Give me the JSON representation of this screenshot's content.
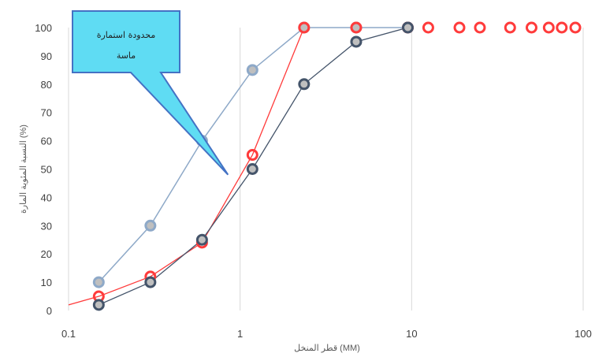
{
  "chart_data": {
    "type": "scatter",
    "title": "",
    "xlabel": "قطر المنخل (MM)",
    "ylabel": "النسبة المئوية المارة (%)",
    "x_scale": "log",
    "xlim": [
      0.1,
      100
    ],
    "ylim": [
      0,
      100
    ],
    "x_ticks": [
      "0.1",
      "1",
      "10",
      "100"
    ],
    "y_ticks": [
      "0",
      "10",
      "20",
      "30",
      "40",
      "50",
      "60",
      "70",
      "80",
      "90",
      "100"
    ],
    "grid": {
      "vertical": true,
      "horizontal": false
    },
    "legend": "none",
    "annotation": {
      "lines": [
        "محدودة استمارة",
        "ماسة"
      ],
      "points_to": {
        "x": 0.85,
        "y": 48
      }
    },
    "series": [
      {
        "color": "#8ea9c8",
        "marker_fill": "#bfbfbf",
        "x": [
          0.15,
          0.3,
          0.6,
          1.18,
          2.36,
          4.75,
          9.5
        ],
        "y": [
          10,
          30,
          60,
          85,
          100,
          100,
          100
        ]
      },
      {
        "color": "#ff3b3b",
        "marker_fill": "none",
        "line_extends_from": {
          "x": 0.1,
          "y": 2
        },
        "x": [
          0.15,
          0.3,
          0.6,
          1.18,
          2.36,
          4.75,
          9.5,
          12.5,
          19,
          25,
          37.5,
          50,
          63,
          75,
          90
        ],
        "y": [
          5,
          12,
          24,
          55,
          100,
          100,
          100,
          100,
          100,
          100,
          100,
          100,
          100,
          100,
          100
        ]
      },
      {
        "color": "#44546a",
        "marker_fill": "#bfbfbf",
        "x": [
          0.15,
          0.3,
          0.6,
          1.18,
          2.36,
          4.75,
          9.5
        ],
        "y": [
          2,
          10,
          25,
          50,
          80,
          95,
          100
        ]
      }
    ]
  }
}
